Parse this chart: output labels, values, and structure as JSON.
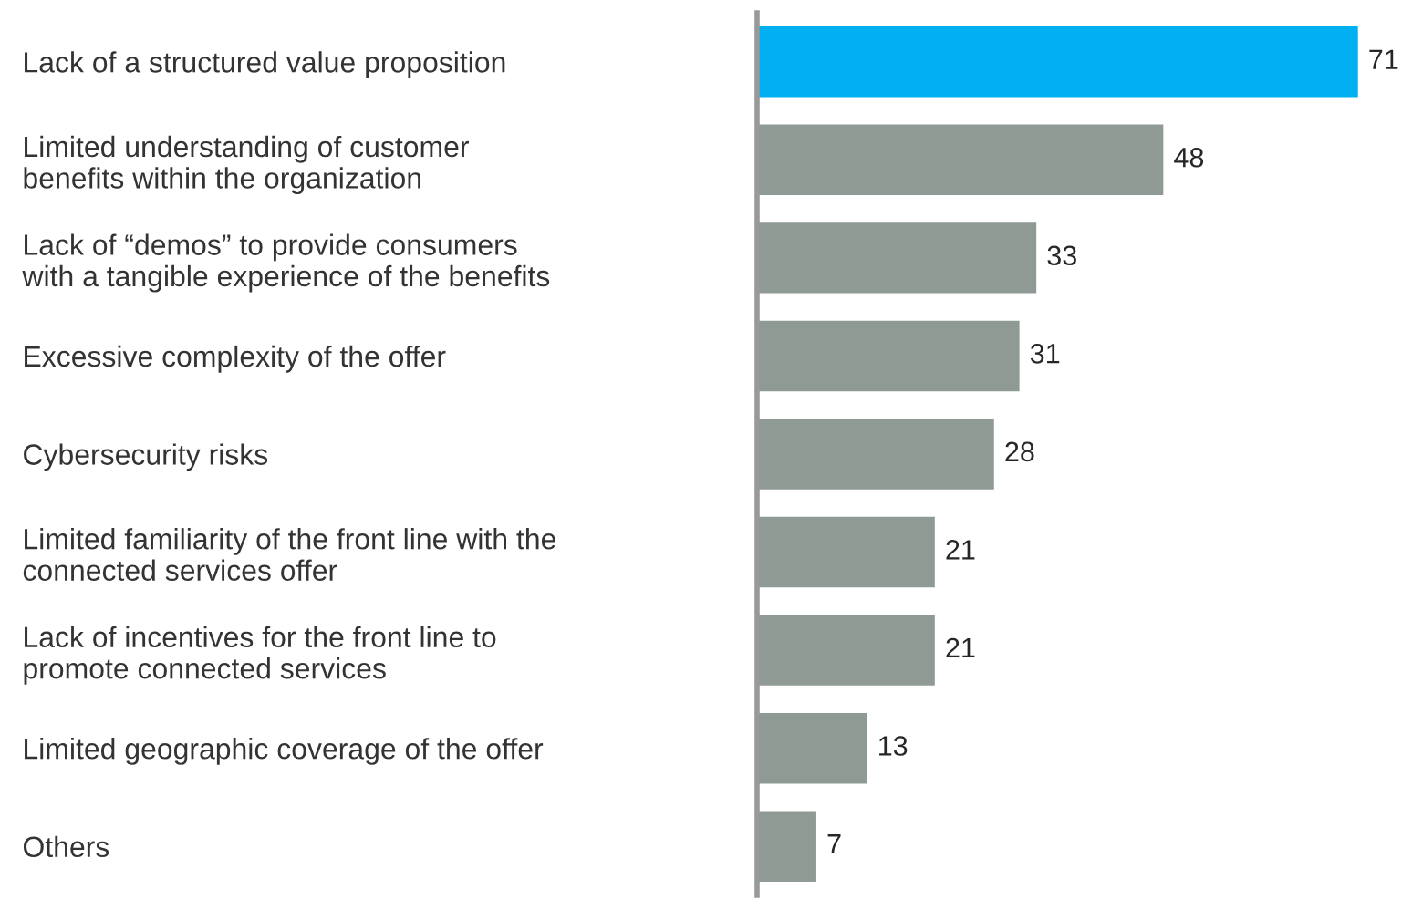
{
  "chart_data": {
    "type": "bar",
    "orientation": "horizontal",
    "categories": [
      "Lack of a structured value proposition",
      "Limited understanding of customer\nbenefits within the organization",
      "Lack of “demos” to provide consumers\nwith a tangible experience of the benefits",
      "Excessive complexity of the offer",
      "Cybersecurity risks",
      "Limited familiarity of the front line with the\nconnected services offer",
      "Lack of incentives for the front line to\npromote connected services",
      "Limited geographic coverage of the offer",
      "Others"
    ],
    "values": [
      71,
      48,
      33,
      31,
      28,
      21,
      21,
      13,
      7
    ],
    "colors": [
      "#00b0f0",
      "#8f9a94",
      "#8f9a94",
      "#8f9a94",
      "#8f9a94",
      "#8f9a94",
      "#8f9a94",
      "#8f9a94",
      "#8f9a94"
    ],
    "data_labels": true,
    "tick_labels": "y",
    "grid": false,
    "legend": false
  }
}
